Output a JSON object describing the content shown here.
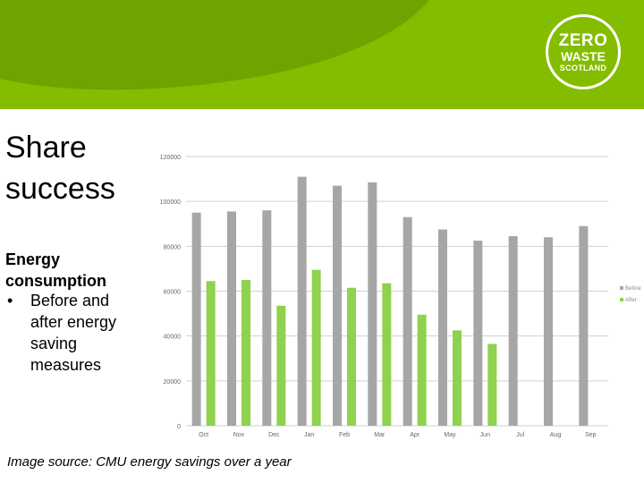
{
  "logo": {
    "line1": "ZERO",
    "line2": "WASTE",
    "line3": "SCOTLAND"
  },
  "colors": {
    "banner_green": "#84bd00",
    "banner_dark": "#6fa300",
    "before": "#a6a6a6",
    "after": "#8ed24e"
  },
  "slide": {
    "title_line1": "Share",
    "title_line2": "success",
    "subtitle_line1": "Energy",
    "subtitle_line2": "consumption",
    "bullet_symbol": "•",
    "bullet_text_line1": "Before and",
    "bullet_text_line2": "after energy",
    "bullet_text_line3": "saving",
    "bullet_text_line4": "measures",
    "caption": "Image source: CMU energy savings over a year"
  },
  "chart_data": {
    "type": "bar",
    "title": "",
    "xlabel": "",
    "ylabel": "",
    "categories": [
      "Oct",
      "Nov",
      "Dec",
      "Jan",
      "Feb",
      "Mar",
      "Apr",
      "May",
      "Jun",
      "Jul",
      "Aug",
      "Sep"
    ],
    "series": [
      {
        "name": "Before",
        "values": [
          95000,
          95500,
          96000,
          111000,
          107000,
          108500,
          93000,
          87500,
          82500,
          84500,
          84000,
          89000
        ]
      },
      {
        "name": "After",
        "values": [
          64500,
          65000,
          53500,
          69500,
          61500,
          63500,
          49500,
          42500,
          36500,
          null,
          null,
          null
        ]
      }
    ],
    "ylim": [
      0,
      120000
    ],
    "yticks": [
      0,
      20000,
      40000,
      60000,
      80000,
      100000,
      120000
    ],
    "grid": true,
    "legend": "right"
  }
}
